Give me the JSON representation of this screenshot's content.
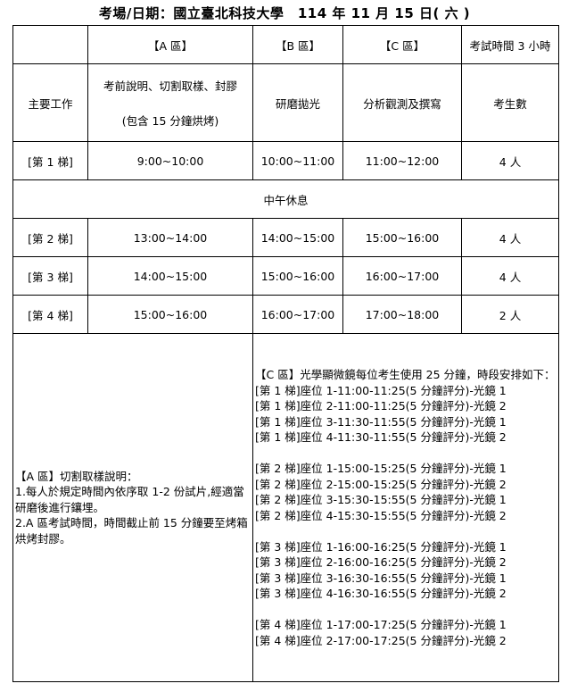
{
  "title": "考場/日期：國立臺北科技大學　114 年  11  月  15  日( 六 )",
  "header": [
    "",
    "【A 區】",
    "【B 區】",
    "【C 區】",
    "考試時間 3 小時"
  ],
  "main_task": {
    "label": "主要工作",
    "a_line1": "考前說明、切割取樣、封膠",
    "a_line2": "(包含 15 分鐘烘烤)",
    "b": "研磨拋光",
    "c": "分析觀測及撰寫",
    "count_label": "考生數"
  },
  "rows": [
    {
      "label": "[第 1 梯]",
      "a": "9:00~10:00",
      "b": "10:00~11:00",
      "c": "11:00~12:00",
      "count": "4 人"
    },
    {
      "label": "[第 2 梯]",
      "a": "13:00~14:00",
      "b": "14:00~15:00",
      "c": "15:00~16:00",
      "count": "4 人"
    },
    {
      "label": "[第 3 梯]",
      "a": "14:00~15:00",
      "b": "15:00~16:00",
      "c": "16:00~17:00",
      "count": "4 人"
    },
    {
      "label": "[第 4 梯]",
      "a": "15:00~16:00",
      "b": "16:00~17:00",
      "c": "17:00~18:00",
      "count": "2 人"
    }
  ],
  "lunch": "中午休息",
  "a_note": "【A 區】切割取樣說明：\n1.每人於規定時間內依序取 1-2 份試片,經適當研磨後進行鑲埋。\n2.A 區考試時間，時間截止前 15 分鐘要至烤箱烘烤封膠。",
  "c_note": "【C 區】光學顯微鏡每位考生使用 25 分鐘，時段安排如下：\n[第 1 梯]座位 1-11:00-11:25(5 分鐘評分)-光鏡 1\n[第 1 梯]座位 2-11:00-11:25(5 分鐘評分)-光鏡 2\n[第 1 梯]座位 3-11:30-11:55(5 分鐘評分)-光鏡 1\n[第 1 梯]座位 4-11:30-11:55(5 分鐘評分)-光鏡 2\n\n[第 2 梯]座位 1-15:00-15:25(5 分鐘評分)-光鏡 1\n[第 2 梯]座位 2-15:00-15:25(5 分鐘評分)-光鏡 2\n[第 2 梯]座位 3-15:30-15:55(5 分鐘評分)-光鏡 1\n[第 2 梯]座位 4-15:30-15:55(5 分鐘評分)-光鏡 2\n\n[第 3 梯]座位 1-16:00-16:25(5 分鐘評分)-光鏡 1\n[第 3 梯]座位 2-16:00-16:25(5 分鐘評分)-光鏡 2\n[第 3 梯]座位 3-16:30-16:55(5 分鐘評分)-光鏡 1\n[第 3 梯]座位 4-16:30-16:55(5 分鐘評分)-光鏡 2\n\n[第 4 梯]座位 1-17:00-17:25(5 分鐘評分)-光鏡 1\n[第 4 梯]座位 2-17:00-17:25(5 分鐘評分)-光鏡 2"
}
